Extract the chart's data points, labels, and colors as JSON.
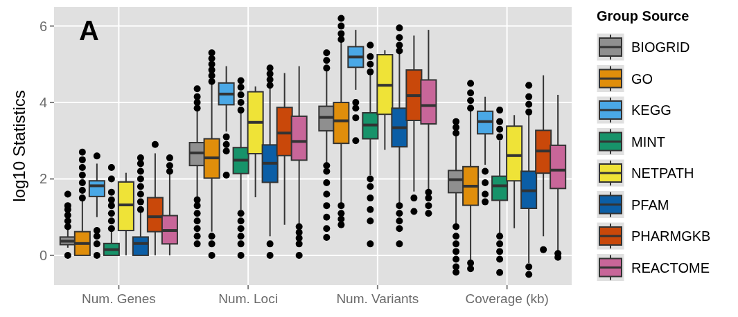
{
  "chart_data": {
    "type": "box",
    "ylabel": "log10 Statistics",
    "legend_title": "Group Source",
    "annotations": [
      "A"
    ],
    "categories": [
      "Num. Genes",
      "Num. Loci",
      "Num. Variants",
      "Coverage (kb)"
    ],
    "ylim": [
      -0.78,
      6.5
    ],
    "yticks": [
      0,
      2,
      4,
      6
    ],
    "grid": true,
    "legend": "right",
    "series": [
      {
        "name": "BIOGRID",
        "color": "#8f8f8f",
        "boxes": [
          {
            "low": 0.2,
            "q1": 0.28,
            "median": 0.37,
            "q3": 0.48,
            "high": 0.68,
            "outliers": [
              0,
              0.75,
              0.9,
              1.05,
              1.2,
              1.3,
              1.6
            ]
          },
          {
            "low": 1.49,
            "q1": 2.35,
            "median": 2.68,
            "q3": 2.95,
            "high": 3.79,
            "outliers": [
              0.3,
              0.5,
              0.7,
              0.9,
              1.1,
              1.3,
              1.45,
              3.85,
              4.0,
              4.15,
              4.36
            ]
          },
          {
            "low": 2.4,
            "q1": 3.26,
            "median": 3.61,
            "q3": 3.9,
            "high": 4.82,
            "outliers": [
              0.47,
              0.7,
              1.0,
              1.3,
              1.6,
              1.9,
              2.2,
              2.35,
              4.9,
              5.1,
              5.3
            ]
          },
          {
            "low": 0.8,
            "q1": 1.64,
            "median": 1.98,
            "q3": 2.22,
            "high": 3.12,
            "outliers": [
              -0.44,
              -0.3,
              -0.1,
              0.1,
              0.3,
              0.5,
              0.75,
              3.2,
              3.35,
              3.5
            ]
          }
        ]
      },
      {
        "name": "GO",
        "color": "#e08e0b",
        "boxes": [
          {
            "low": 0,
            "q1": 0,
            "median": 0.31,
            "q3": 0.62,
            "high": 1.46,
            "outliers": [
              1.5,
              1.7,
              1.9,
              2.1,
              2.3,
              2.5,
              2.7
            ]
          },
          {
            "low": 0.62,
            "q1": 2.02,
            "median": 2.55,
            "q3": 3.05,
            "high": 4.48,
            "outliers": [
              0,
              0.3,
              0.5,
              4.55,
              4.7,
              4.85,
              5.0,
              5.15,
              5.3
            ]
          },
          {
            "low": 1.37,
            "q1": 2.93,
            "median": 3.52,
            "q3": 4.0,
            "high": 5.6,
            "outliers": [
              0.8,
              0.95,
              1.1,
              1.3,
              5.65,
              5.8,
              6.0,
              6.2
            ]
          },
          {
            "low": -0.11,
            "q1": 1.31,
            "median": 1.81,
            "q3": 2.32,
            "high": 3.79,
            "outliers": [
              -0.35,
              -0.2,
              3.85,
              4.05,
              4.25,
              4.5
            ]
          }
        ]
      },
      {
        "name": "KEGG",
        "color": "#4aa8e6",
        "boxes": [
          {
            "low": 1.0,
            "q1": 1.54,
            "median": 1.82,
            "q3": 1.95,
            "high": 2.4,
            "outliers": [
              0,
              0.3,
              0.5,
              0.65,
              2.6
            ]
          },
          {
            "low": 3.24,
            "q1": 3.94,
            "median": 4.22,
            "q3": 4.51,
            "high": 4.95,
            "outliers": [
              2.1,
              2.73,
              2.9,
              3.1
            ]
          },
          {
            "low": 4.33,
            "q1": 4.92,
            "median": 5.19,
            "q3": 5.46,
            "high": 5.9,
            "outliers": [
              3.0,
              3.6,
              3.85,
              4.0
            ]
          },
          {
            "low": 2.37,
            "q1": 3.18,
            "median": 3.5,
            "q3": 3.77,
            "high": 4.15,
            "outliers": [
              1.4,
              1.6,
              1.9,
              2.2
            ]
          }
        ]
      },
      {
        "name": "MINT",
        "color": "#17936a",
        "boxes": [
          {
            "low": 0,
            "q1": 0,
            "median": 0.15,
            "q3": 0.31,
            "high": 0.68,
            "outliers": [
              0.7,
              0.9,
              1.1,
              1.3,
              1.45,
              1.65,
              2.0,
              2.3
            ]
          },
          {
            "low": 1.19,
            "q1": 2.14,
            "median": 2.49,
            "q3": 2.82,
            "high": 3.73,
            "outliers": [
              0,
              0.3,
              0.5,
              0.7,
              0.9,
              1.1,
              3.8,
              4.0,
              4.2,
              4.4,
              4.57
            ]
          },
          {
            "low": 2.1,
            "q1": 3.05,
            "median": 3.41,
            "q3": 3.73,
            "high": 4.73,
            "outliers": [
              0.3,
              0.9,
              1.2,
              1.5,
              1.8,
              2.0,
              4.8,
              5.0,
              5.2,
              5.5
            ]
          },
          {
            "low": 0.56,
            "q1": 1.44,
            "median": 1.82,
            "q3": 2.07,
            "high": 3.0,
            "outliers": [
              -0.45,
              -0.1,
              0.1,
              0.3,
              0.5,
              3.1,
              3.3,
              3.5,
              3.8
            ]
          }
        ]
      },
      {
        "name": "NETPATH",
        "color": "#efe337",
        "boxes": [
          {
            "low": 0,
            "q1": 0.65,
            "median": 1.32,
            "q3": 1.92,
            "high": 2.16
          },
          {
            "low": 1.52,
            "q1": 2.66,
            "median": 3.48,
            "q3": 4.28,
            "high": 4.42
          },
          {
            "low": 2.76,
            "q1": 3.69,
            "median": 4.45,
            "q3": 5.25,
            "high": 5.37
          },
          {
            "low": 0.71,
            "q1": 1.95,
            "median": 2.61,
            "q3": 3.38,
            "high": 3.67
          }
        ]
      },
      {
        "name": "PFAM",
        "color": "#0b5ea6",
        "boxes": [
          {
            "low": 0,
            "q1": 0,
            "median": 0.31,
            "q3": 0.48,
            "high": 1.13,
            "outliers": [
              1.2,
              1.4,
              1.6,
              1.8,
              2.0,
              2.2,
              2.4,
              2.55
            ]
          },
          {
            "low": 0.5,
            "q1": 1.91,
            "median": 2.41,
            "q3": 2.89,
            "high": 4.36,
            "outliers": [
              0,
              0.3,
              4.45,
              4.6,
              4.75,
              4.9
            ]
          },
          {
            "low": 1.37,
            "q1": 2.84,
            "median": 3.34,
            "q3": 3.85,
            "high": 5.27,
            "outliers": [
              0.3,
              0.7,
              0.9,
              1.1,
              1.3,
              5.35,
              5.5,
              5.7,
              5.95
            ]
          },
          {
            "low": -0.2,
            "q1": 1.23,
            "median": 1.69,
            "q3": 2.2,
            "high": 3.67,
            "outliers": [
              -0.5,
              -0.3,
              3.75,
              3.95,
              4.15,
              4.45
            ]
          }
        ]
      },
      {
        "name": "PHARMGKB",
        "color": "#c9480a",
        "boxes": [
          {
            "low": 0,
            "q1": 0.62,
            "median": 1.01,
            "q3": 1.51,
            "high": 2.67,
            "outliers": [
              2.9
            ]
          },
          {
            "low": 0.8,
            "q1": 2.61,
            "median": 3.2,
            "q3": 3.87,
            "high": 4.77
          },
          {
            "low": 1.67,
            "q1": 3.53,
            "median": 4.18,
            "q3": 4.85,
            "high": 5.75,
            "outliers": [
              1.15,
              1.5
            ]
          },
          {
            "low": 0.5,
            "q1": 2.15,
            "median": 2.73,
            "q3": 3.27,
            "high": 4.71,
            "outliers": [
              0.15
            ]
          }
        ]
      },
      {
        "name": "REACTOME",
        "color": "#c86699",
        "boxes": [
          {
            "low": 0,
            "q1": 0.3,
            "median": 0.65,
            "q3": 1.04,
            "high": 2.16,
            "outliers": [
              2.2,
              2.35,
              2.55
            ]
          },
          {
            "low": 0.83,
            "q1": 2.49,
            "median": 2.98,
            "q3": 3.64,
            "high": 4.95,
            "outliers": [
              0,
              0.3,
              0.45,
              0.6,
              0.75
            ]
          },
          {
            "low": 1.73,
            "q1": 3.44,
            "median": 3.92,
            "q3": 4.59,
            "high": 5.9,
            "outliers": [
              1.1,
              1.3,
              1.5,
              1.65
            ]
          },
          {
            "low": 0.1,
            "q1": 1.75,
            "median": 2.23,
            "q3": 2.88,
            "high": 4.2,
            "outliers": [
              -0.05,
              0.05
            ]
          }
        ]
      }
    ]
  }
}
